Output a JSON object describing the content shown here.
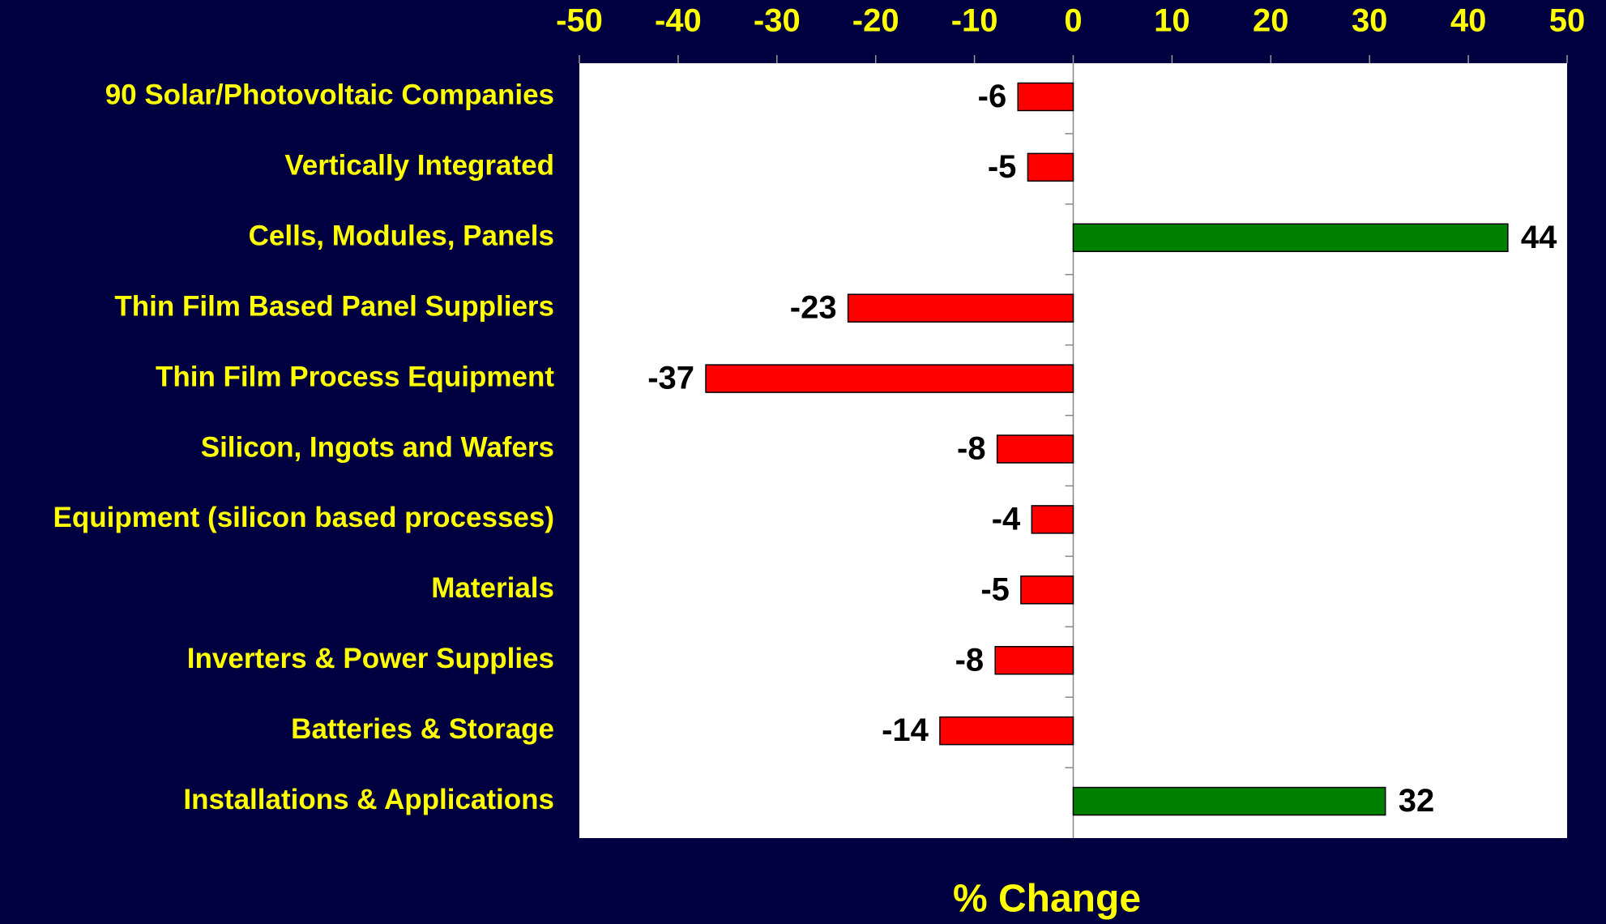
{
  "chart_data": {
    "type": "hbar",
    "x_axis_label": "% Change",
    "categories": [
      "90 Solar/Photovoltaic Companies",
      "Vertically Integrated",
      "Cells, Modules, Panels",
      "Thin Film Based Panel Suppliers",
      "Thin Film Process Equipment",
      "Silicon, Ingots and Wafers",
      "Equipment (silicon based processes)",
      "Materials",
      "Inverters & Power Supplies",
      "Batteries & Storage",
      "Installations & Applications"
    ],
    "values": [
      -5.6,
      -4.6,
      44,
      -22.8,
      -37.2,
      -7.7,
      -4.2,
      -5.3,
      -7.9,
      -13.5,
      31.6
    ],
    "value_labels": [
      "-6",
      "-5",
      "44",
      "-23",
      "-37",
      "-8",
      "-4",
      "-5",
      "-8",
      "-14",
      "32"
    ],
    "positive_color": "#008000",
    "negative_color": "#ff0000",
    "xlim": [
      -50,
      50
    ],
    "xticks": [
      -50,
      -40,
      -30,
      -20,
      -10,
      0,
      10,
      20,
      30,
      40,
      50
    ]
  }
}
